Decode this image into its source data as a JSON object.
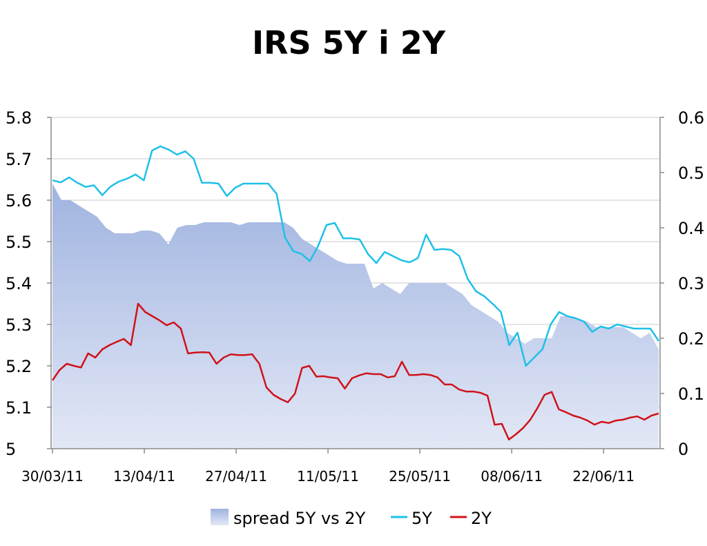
{
  "chart_data": {
    "type": "line",
    "title": "IRS 5Y i 2Y",
    "x_ticks": [
      "30/03/11",
      "13/04/11",
      "27/04/11",
      "11/05/11",
      "25/05/11",
      "08/06/11",
      "22/06/11"
    ],
    "x_tick_index": [
      0,
      10,
      20,
      30,
      40,
      50,
      60
    ],
    "ylim_left": [
      5.0,
      5.8
    ],
    "yticks_left": [
      "5",
      "5.1",
      "5.2",
      "5.3",
      "5.4",
      "5.5",
      "5.6",
      "5.7",
      "5.8"
    ],
    "ylim_right": [
      0,
      0.6
    ],
    "yticks_right": [
      "0",
      "0.1",
      "0.2",
      "0.3",
      "0.4",
      "0.5",
      "0.6"
    ],
    "grid": true,
    "legend_position": "bottom",
    "colors": {
      "spread_top": "#9fb3e0",
      "spread_bottom": "#e3e8f6",
      "5Y": "#1ec0e8",
      "2Y": "#d0121a"
    },
    "series": [
      {
        "name": "spread 5Y vs 2Y",
        "axis": "right",
        "style": "area",
        "values": [
          0.48,
          0.45,
          0.45,
          0.44,
          0.43,
          0.42,
          0.4,
          0.39,
          0.39,
          0.39,
          0.395,
          0.395,
          0.39,
          0.37,
          0.4,
          0.405,
          0.405,
          0.41,
          0.41,
          0.41,
          0.41,
          0.405,
          0.41,
          0.41,
          0.41,
          0.41,
          0.41,
          0.4,
          0.38,
          0.37,
          0.36,
          0.35,
          0.34,
          0.335,
          0.335,
          0.335,
          0.29,
          0.3,
          0.29,
          0.28,
          0.3,
          0.3,
          0.3,
          0.3,
          0.3,
          0.29,
          0.28,
          0.26,
          0.25,
          0.24,
          0.23,
          0.21,
          0.2,
          0.19,
          0.2,
          0.2,
          0.2,
          0.24,
          0.24,
          0.235,
          0.23,
          0.22,
          0.22,
          0.22,
          0.22,
          0.21,
          0.2,
          0.21,
          0.18
        ]
      },
      {
        "name": "5Y",
        "axis": "left",
        "style": "line",
        "values": [
          5.648,
          5.643,
          5.655,
          5.642,
          5.632,
          5.636,
          5.612,
          5.633,
          5.645,
          5.652,
          5.662,
          5.648,
          5.72,
          5.73,
          5.722,
          5.71,
          5.718,
          5.7,
          5.642,
          5.642,
          5.64,
          5.61,
          5.63,
          5.64,
          5.64,
          5.64,
          5.64,
          5.615,
          5.51,
          5.477,
          5.47,
          5.453,
          5.49,
          5.54,
          5.545,
          5.508,
          5.508,
          5.505,
          5.47,
          5.448,
          5.475,
          5.465,
          5.455,
          5.45,
          5.46,
          5.517,
          5.48,
          5.482,
          5.48,
          5.465,
          5.41,
          5.38,
          5.368,
          5.35,
          5.33,
          5.25,
          5.28,
          5.2,
          5.22,
          5.24,
          5.3,
          5.33,
          5.32,
          5.315,
          5.307,
          5.282,
          5.295,
          5.29,
          5.3,
          5.295,
          5.29,
          5.29,
          5.29,
          5.26
        ]
      },
      {
        "name": "2Y",
        "axis": "left",
        "style": "line",
        "values": [
          5.165,
          5.19,
          5.205,
          5.2,
          5.196,
          5.23,
          5.22,
          5.24,
          5.25,
          5.258,
          5.265,
          5.25,
          5.35,
          5.33,
          5.32,
          5.31,
          5.298,
          5.305,
          5.29,
          5.23,
          5.232,
          5.233,
          5.232,
          5.205,
          5.22,
          5.228,
          5.226,
          5.226,
          5.228,
          5.205,
          5.148,
          5.13,
          5.12,
          5.112,
          5.133,
          5.195,
          5.2,
          5.174,
          5.175,
          5.172,
          5.17,
          5.145,
          5.17,
          5.177,
          5.182,
          5.18,
          5.18,
          5.172,
          5.175,
          5.21,
          5.178,
          5.178,
          5.18,
          5.178,
          5.172,
          5.155,
          5.155,
          5.143,
          5.138,
          5.138,
          5.135,
          5.128,
          5.058,
          5.06,
          5.022,
          5.035,
          5.05,
          5.07,
          5.098,
          5.13,
          5.137,
          5.095,
          5.088,
          5.08,
          5.075,
          5.068,
          5.058,
          5.065,
          5.062,
          5.068,
          5.07,
          5.075,
          5.078,
          5.07,
          5.08,
          5.085
        ]
      }
    ]
  }
}
